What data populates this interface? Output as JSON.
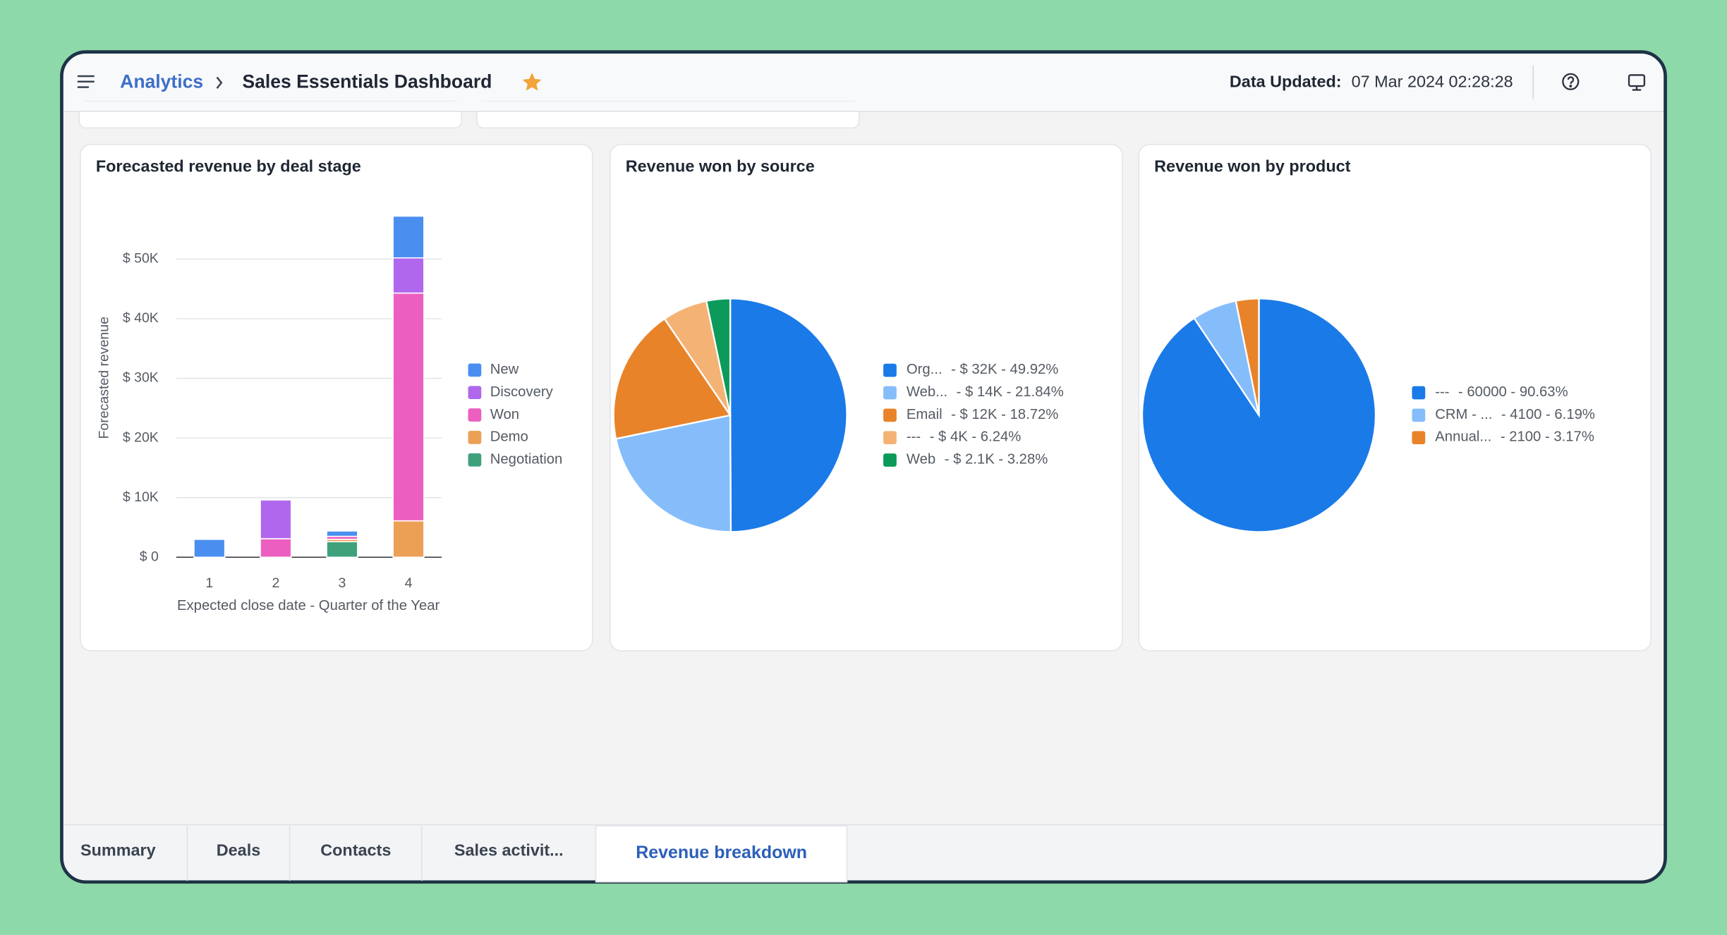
{
  "header": {
    "breadcrumb": "Analytics",
    "title": "Sales Essentials Dashboard",
    "updated_label": "Data Updated:",
    "updated_value": "07 Mar 2024 02:28:28"
  },
  "charts": [
    {
      "type": "bar",
      "stacked": true,
      "title": "Forecasted revenue by deal stage",
      "y_label": "Forecasted revenue",
      "x_label": "Expected close date - Quarter of the Year",
      "categories": [
        "1",
        "2",
        "3",
        "4"
      ],
      "series": [
        {
          "name": "New",
          "color": "#4a8ff0",
          "values": [
            3000,
            null,
            900,
            7000
          ]
        },
        {
          "name": "Discovery",
          "color": "#b067ee",
          "values": [
            null,
            6500,
            null,
            5900
          ]
        },
        {
          "name": "Won",
          "color": "#ec5fc0",
          "values": [
            null,
            3100,
            500,
            38200
          ]
        },
        {
          "name": "Demo",
          "color": "#eca055",
          "values": [
            null,
            null,
            400,
            6100
          ]
        },
        {
          "name": "Negotiation",
          "color": "#3fa17c",
          "values": [
            null,
            null,
            2600,
            null
          ]
        }
      ],
      "ylim": [
        0,
        60000
      ],
      "yticks": [
        {
          "value": 0,
          "label": "$ 0"
        },
        {
          "value": 10000,
          "label": "$ 10K"
        },
        {
          "value": 20000,
          "label": "$ 20K"
        },
        {
          "value": 30000,
          "label": "$ 30K"
        },
        {
          "value": 40000,
          "label": "$ 40K"
        },
        {
          "value": 50000,
          "label": "$ 50K"
        }
      ],
      "grid": true
    },
    {
      "type": "pie",
      "title": "Revenue won by source",
      "categories": [
        "Org...",
        "Web...",
        "Email",
        "---",
        "Web"
      ],
      "values": [
        49.92,
        21.84,
        18.72,
        6.24,
        3.28
      ],
      "value_labels": [
        "- $ 32K - 49.92%",
        "- $ 14K - 21.84%",
        "- $ 12K - 18.72%",
        "- $ 4K - 6.24%",
        "- $ 2.1K - 3.28%"
      ],
      "colors": [
        "#1a7ae8",
        "#85bdfb",
        "#e8832a",
        "#f4b274",
        "#0b9a5a"
      ]
    },
    {
      "type": "pie",
      "title": "Revenue won by product",
      "categories": [
        "---",
        "CRM - ...",
        "Annual..."
      ],
      "values": [
        90.63,
        6.19,
        3.17
      ],
      "value_labels": [
        "- 60000 - 90.63%",
        "- 4100 - 6.19%",
        "- 2100 - 3.17%"
      ],
      "colors": [
        "#1a7ae8",
        "#85bdfb",
        "#e8832a"
      ]
    }
  ],
  "tabs": [
    "Summary",
    "Deals",
    "Contacts",
    "Sales activit...",
    "Revenue breakdown"
  ],
  "active_tab": 4
}
